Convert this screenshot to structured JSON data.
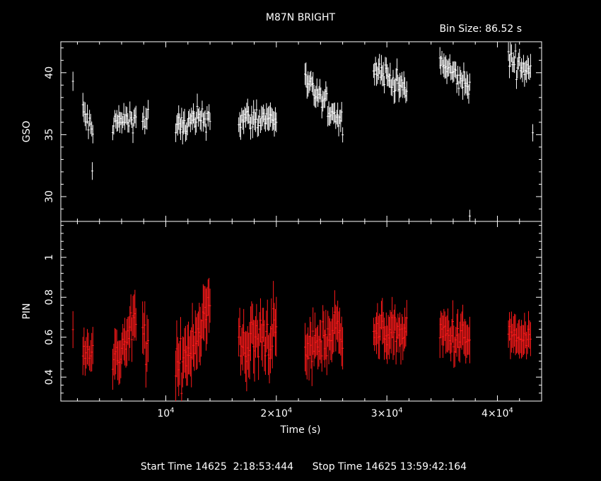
{
  "chart_data": {
    "type": "scatter",
    "title": "M87N BRIGHT",
    "bin_size_label": "Bin Size: 86.52 s",
    "xlabel": "Time (s)",
    "xlim": [
      500,
      44000
    ],
    "x_ticks": [
      {
        "value": 10000,
        "mantissa": "10",
        "exp": "4"
      },
      {
        "value": 20000,
        "mantissa": "2×10",
        "exp": "4"
      },
      {
        "value": 30000,
        "mantissa": "3×10",
        "exp": "4"
      },
      {
        "value": 40000,
        "mantissa": "4×10",
        "exp": "4"
      }
    ],
    "panels": [
      {
        "name": "gso",
        "ylabel": "GSO",
        "ylim": [
          28,
          42.5
        ],
        "y_ticks": [
          30,
          35,
          40
        ],
        "y_tick_labels": [
          "30",
          "35",
          "40"
        ],
        "color": "#ffffff",
        "segments": [
          {
            "t0": 1600,
            "t1": 1650,
            "y0": 39.0,
            "y1": 39.0,
            "amp": 0.6,
            "err": 0.7
          },
          {
            "t0": 2500,
            "t1": 3400,
            "y0": 37.0,
            "y1": 35.0,
            "amp": 1.1,
            "err": 0.8
          },
          {
            "t0": 3350,
            "t1": 3400,
            "y0": 32.0,
            "y1": 32.0,
            "amp": 0.4,
            "err": 1.0
          },
          {
            "t0": 5200,
            "t1": 7300,
            "y0": 35.9,
            "y1": 36.4,
            "amp": 0.9,
            "err": 0.7
          },
          {
            "t0": 7900,
            "t1": 8400,
            "y0": 36.0,
            "y1": 36.5,
            "amp": 0.8,
            "err": 0.8
          },
          {
            "t0": 10900,
            "t1": 14000,
            "y0": 35.5,
            "y1": 36.5,
            "amp": 1.0,
            "err": 0.8
          },
          {
            "t0": 16600,
            "t1": 20000,
            "y0": 36.2,
            "y1": 36.4,
            "amp": 1.0,
            "err": 0.8
          },
          {
            "t0": 22600,
            "t1": 26000,
            "y0": 39.2,
            "y1": 36.0,
            "amp": 0.9,
            "err": 0.8
          },
          {
            "t0": 28800,
            "t1": 31800,
            "y0": 40.6,
            "y1": 38.5,
            "amp": 0.9,
            "err": 0.8
          },
          {
            "t0": 34800,
            "t1": 37500,
            "y0": 40.8,
            "y1": 38.8,
            "amp": 0.9,
            "err": 0.8
          },
          {
            "t0": 41000,
            "t1": 43000,
            "y0": 41.2,
            "y1": 40.0,
            "amp": 0.9,
            "err": 0.8
          },
          {
            "t0": 43200,
            "t1": 43250,
            "y0": 35.2,
            "y1": 35.2,
            "amp": 0.3,
            "err": 0.6
          },
          {
            "t0": 37500,
            "t1": 37550,
            "y0": 28.4,
            "y1": 28.4,
            "amp": 0.2,
            "err": 0.7
          }
        ]
      },
      {
        "name": "pin",
        "ylabel": "PIN",
        "ylim": [
          0.28,
          1.18
        ],
        "y_ticks": [
          0.4,
          0.6,
          0.8,
          1.0
        ],
        "y_tick_labels": [
          "0.4",
          "0.6",
          "0.8",
          "1"
        ],
        "color": "#ff1a1a",
        "segments": [
          {
            "t0": 1600,
            "t1": 1650,
            "y0": 0.68,
            "y1": 0.68,
            "amp": 0.05,
            "err": 0.09
          },
          {
            "t0": 2500,
            "t1": 3400,
            "y0": 0.56,
            "y1": 0.54,
            "amp": 0.06,
            "err": 0.08
          },
          {
            "t0": 5200,
            "t1": 7300,
            "y0": 0.45,
            "y1": 0.68,
            "amp": 0.09,
            "err": 0.1
          },
          {
            "t0": 7900,
            "t1": 8400,
            "y0": 0.62,
            "y1": 0.55,
            "amp": 0.1,
            "err": 0.12
          },
          {
            "t0": 10900,
            "t1": 14000,
            "y0": 0.42,
            "y1": 0.75,
            "amp": 0.12,
            "err": 0.12
          },
          {
            "t0": 16600,
            "t1": 20000,
            "y0": 0.55,
            "y1": 0.62,
            "amp": 0.12,
            "err": 0.12
          },
          {
            "t0": 22600,
            "t1": 26000,
            "y0": 0.52,
            "y1": 0.66,
            "amp": 0.1,
            "err": 0.1
          },
          {
            "t0": 28800,
            "t1": 31800,
            "y0": 0.63,
            "y1": 0.62,
            "amp": 0.07,
            "err": 0.09
          },
          {
            "t0": 34800,
            "t1": 37500,
            "y0": 0.62,
            "y1": 0.58,
            "amp": 0.08,
            "err": 0.09
          },
          {
            "t0": 41000,
            "t1": 43000,
            "y0": 0.62,
            "y1": 0.56,
            "amp": 0.06,
            "err": 0.08
          }
        ]
      }
    ]
  },
  "footer": {
    "start_label": "Start Time 14625  2:18:53:444",
    "stop_label": "Stop Time 14625 13:59:42:164"
  }
}
